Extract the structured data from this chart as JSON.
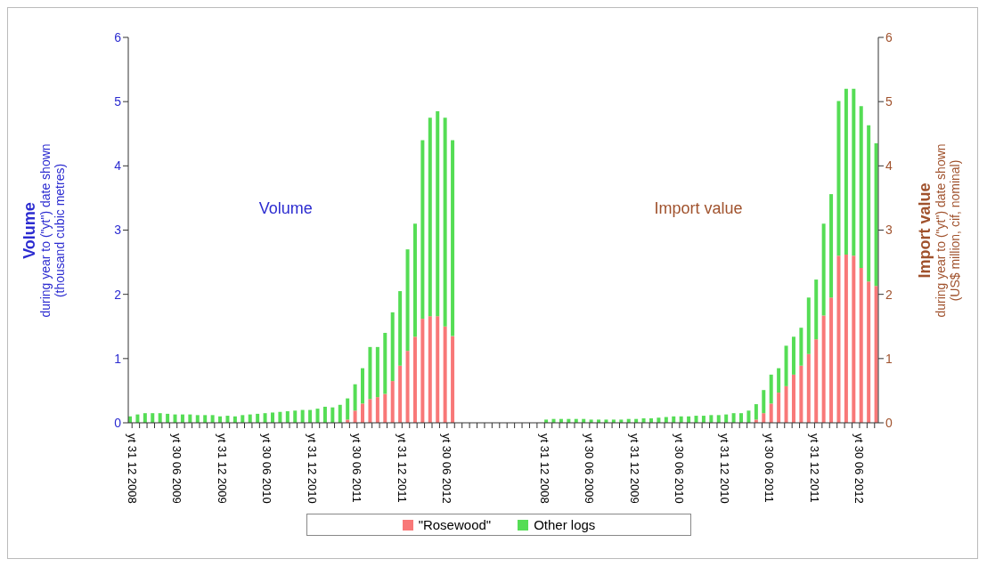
{
  "chart_data": {
    "type": "bar",
    "stacked": true,
    "legend": "bottom",
    "ylabel": "Volume\nduring year to (\"yt\") date shown\n(thousand cubic metres)",
    "y2label": "Import value\nduring year to (\"yt\") date shown\n(US$ million, cif, nominal)",
    "annotations": [
      "Volume",
      "Import value"
    ],
    "ylim": [
      0,
      6
    ],
    "yticks": [
      0,
      1,
      2,
      3,
      4,
      5,
      6
    ],
    "y2lim": [
      0,
      6
    ],
    "y2ticks": [
      0,
      1,
      2,
      3,
      4,
      5,
      6
    ],
    "categories": [
      "yt 31 12 2008",
      null,
      null,
      null,
      null,
      null,
      "yt 30 06 2009",
      null,
      null,
      null,
      null,
      null,
      "yt 31 12 2009",
      null,
      null,
      null,
      null,
      null,
      "yt 30 06 2010",
      null,
      null,
      null,
      null,
      null,
      "yt 31 12 2010",
      null,
      null,
      null,
      null,
      null,
      "yt 30 06 2011",
      null,
      null,
      null,
      null,
      null,
      "yt 31 12 2011",
      null,
      null,
      null,
      null,
      null,
      "yt 30 06 2012",
      null,
      null,
      null,
      null,
      null,
      null,
      null,
      null,
      null,
      null,
      null,
      null,
      "yt 31 12 2008",
      null,
      null,
      null,
      null,
      null,
      "yt 30 06 2009",
      null,
      null,
      null,
      null,
      null,
      "yt 31 12 2009",
      null,
      null,
      null,
      null,
      null,
      "yt 30 06 2010",
      null,
      null,
      null,
      null,
      null,
      "yt 31 12 2010",
      null,
      null,
      null,
      null,
      null,
      "yt 30 06 2011",
      null,
      null,
      null,
      null,
      null,
      "yt 31 12 2011",
      null,
      null,
      null,
      null,
      null,
      "yt 30 06 2012",
      null,
      null
    ],
    "series": [
      {
        "name": "\"Rosewood\"",
        "color": "#f87878",
        "values": [
          0,
          0,
          0,
          0,
          0,
          0,
          0,
          0,
          0,
          0,
          0,
          0,
          0,
          0,
          0,
          0,
          0,
          0,
          0,
          0,
          0,
          0,
          0,
          0,
          0,
          0,
          0,
          0,
          0,
          0.05,
          0.19,
          0.3,
          0.37,
          0.4,
          0.45,
          0.65,
          0.89,
          1.12,
          1.34,
          1.62,
          1.66,
          1.66,
          1.5,
          1.35,
          null,
          null,
          null,
          null,
          null,
          null,
          null,
          null,
          null,
          null,
          null,
          null,
          null,
          null,
          null,
          null,
          null,
          null,
          null,
          null,
          null,
          null,
          null,
          null,
          null,
          null,
          null,
          null,
          null,
          null,
          null,
          null,
          null,
          null,
          null,
          null,
          null,
          null,
          null,
          null,
          null,
          null,
          null,
          null,
          null,
          null,
          null,
          null,
          null,
          null,
          null,
          null,
          null,
          null,
          null,
          null
        ]
      },
      {
        "name": "Other logs",
        "color": "#55dd55",
        "values": [
          0.1,
          0.13,
          0.15,
          0.15,
          0.15,
          0.14,
          0.13,
          0.13,
          0.13,
          0.12,
          0.12,
          0.12,
          0.1,
          0.11,
          0.1,
          0.12,
          0.13,
          0.14,
          0.15,
          0.16,
          0.17,
          0.18,
          0.19,
          0.2,
          0.2,
          0.22,
          0.25,
          0.24,
          0.28,
          0.33,
          0.41,
          0.55,
          0.81,
          0.78,
          0.95,
          1.07,
          1.16,
          1.58,
          1.76,
          2.78,
          3.09,
          3.19,
          3.25,
          3.05,
          null,
          null,
          null,
          null,
          null,
          null,
          null,
          null,
          null,
          null,
          null,
          null,
          null,
          null,
          null,
          null,
          null,
          null,
          null,
          null,
          null,
          null,
          null,
          null,
          null,
          null,
          null,
          null,
          null,
          null,
          null,
          null,
          null,
          null,
          null,
          null,
          null,
          null,
          null,
          null,
          null,
          null,
          null,
          null,
          null,
          null,
          null,
          null,
          null,
          null,
          null,
          null,
          null,
          null,
          null,
          null
        ]
      },
      {
        "color": "#f87878",
        "axis": "y2",
        "values": [
          null,
          null,
          null,
          null,
          null,
          null,
          null,
          null,
          null,
          null,
          null,
          null,
          null,
          null,
          null,
          null,
          null,
          null,
          null,
          null,
          null,
          null,
          null,
          null,
          null,
          null,
          null,
          null,
          null,
          null,
          null,
          null,
          null,
          null,
          null,
          null,
          null,
          null,
          null,
          null,
          null,
          null,
          null,
          null,
          null,
          null,
          null,
          null,
          null,
          null,
          null,
          null,
          null,
          null,
          null,
          0,
          0,
          0,
          0,
          0,
          0,
          0,
          0,
          0,
          0,
          0,
          0,
          0,
          0,
          0,
          0,
          0,
          0,
          0,
          0,
          0,
          0,
          0,
          0,
          0,
          0,
          0,
          0,
          0.05,
          0.15,
          0.3,
          0.47,
          0.57,
          0.75,
          0.89,
          1.07,
          1.3,
          1.67,
          1.95,
          2.6,
          2.62,
          2.6,
          2.41,
          2.2,
          2.13
        ]
      },
      {
        "color": "#55dd55",
        "axis": "y2",
        "values": [
          null,
          null,
          null,
          null,
          null,
          null,
          null,
          null,
          null,
          null,
          null,
          null,
          null,
          null,
          null,
          null,
          null,
          null,
          null,
          null,
          null,
          null,
          null,
          null,
          null,
          null,
          null,
          null,
          null,
          null,
          null,
          null,
          null,
          null,
          null,
          null,
          null,
          null,
          null,
          null,
          null,
          null,
          null,
          null,
          null,
          null,
          null,
          null,
          null,
          null,
          null,
          null,
          null,
          null,
          null,
          0.05,
          0.06,
          0.06,
          0.06,
          0.06,
          0.06,
          0.05,
          0.05,
          0.05,
          0.05,
          0.05,
          0.06,
          0.06,
          0.07,
          0.07,
          0.08,
          0.09,
          0.1,
          0.1,
          0.1,
          0.11,
          0.11,
          0.12,
          0.12,
          0.13,
          0.15,
          0.15,
          0.19,
          0.24,
          0.36,
          0.45,
          0.38,
          0.63,
          0.59,
          0.59,
          0.88,
          0.93,
          1.43,
          1.61,
          2.41,
          2.58,
          2.6,
          2.52,
          2.43,
          2.22
        ]
      }
    ]
  }
}
